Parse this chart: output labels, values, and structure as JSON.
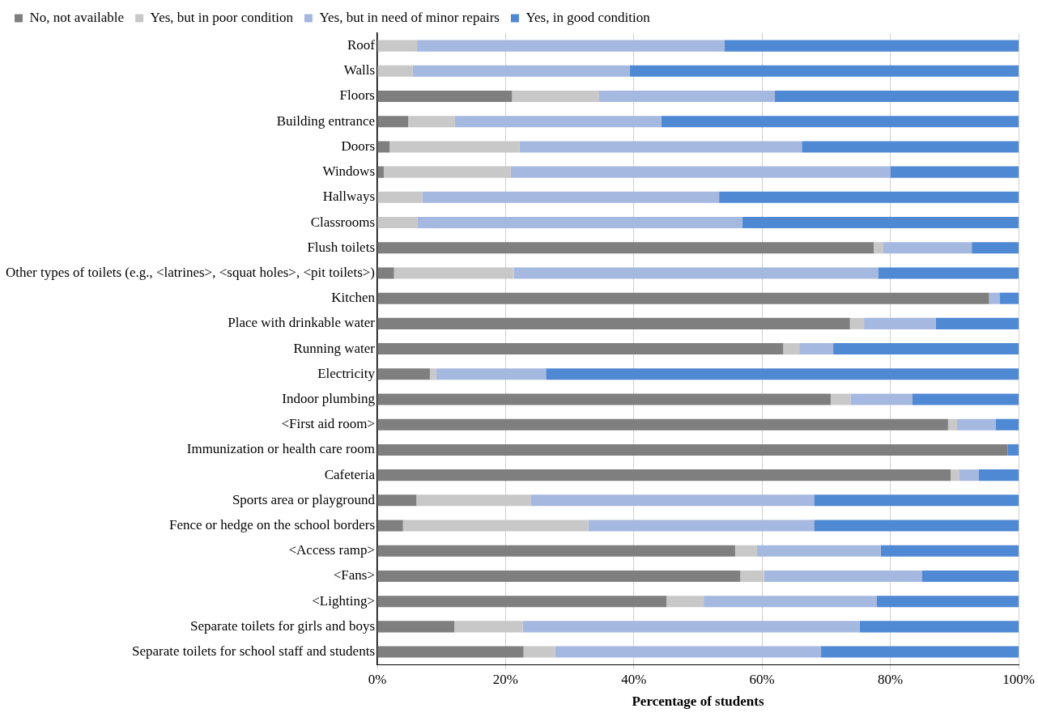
{
  "chart_data": {
    "type": "bar",
    "orientation": "horizontal",
    "stacked": true,
    "xlabel": "Percentage of students",
    "categories": [
      "Roof",
      "Walls",
      "Floors",
      "Building entrance",
      "Doors",
      "Windows",
      "Hallways",
      "Classrooms",
      "Flush toilets",
      "Other types of toilets (e.g., <latrines>, <squat holes>, <pit toilets>)",
      "Kitchen",
      "Place with drinkable water",
      "Running water",
      "Electricity",
      "Indoor plumbing",
      "<First aid room>",
      "Immunization or health care room",
      "Cafeteria",
      "Sports area or playground",
      "Fence or hedge on the school borders",
      "<Access ramp>",
      "<Fans>",
      "<Lighting>",
      "Separate toilets for girls and boys",
      "Separate toilets for school staff and students"
    ],
    "series": [
      {
        "name": "No, not available",
        "color": "#7f7f7f",
        "values": [
          0,
          0,
          21.0,
          4.8,
          1.9,
          1.0,
          0,
          0,
          77.4,
          2.6,
          95.4,
          73.7,
          63.3,
          8.2,
          70.7,
          89.0,
          98.3,
          89.4,
          6.1,
          4.0,
          55.8,
          56.6,
          45.1,
          12.0,
          22.8
        ]
      },
      {
        "name": "Yes, but in poor condition",
        "color": "#c8c8c8",
        "values": [
          6.2,
          5.5,
          13.6,
          7.3,
          20.3,
          19.8,
          7.0,
          6.3,
          1.5,
          18.7,
          0,
          2.2,
          2.5,
          1.0,
          3.1,
          1.4,
          0,
          1.3,
          17.8,
          28.9,
          3.4,
          3.7,
          5.8,
          10.7,
          4.9
        ]
      },
      {
        "name": "Yes, but in need of minor repairs",
        "color": "#a5b8e0",
        "values": [
          47.9,
          33.9,
          27.4,
          32.2,
          44.0,
          59.2,
          46.3,
          50.6,
          13.8,
          56.8,
          1.7,
          11.2,
          5.3,
          17.1,
          9.6,
          6.0,
          0,
          3.1,
          44.2,
          35.2,
          19.3,
          24.6,
          27.0,
          52.5,
          41.5
        ]
      },
      {
        "name": "Yes, in good condition",
        "color": "#4f88d3",
        "values": [
          45.9,
          60.6,
          38.0,
          55.7,
          33.8,
          20.0,
          46.7,
          43.1,
          7.3,
          21.9,
          2.9,
          12.9,
          28.9,
          73.7,
          16.6,
          3.6,
          1.7,
          6.2,
          31.9,
          31.9,
          21.5,
          15.1,
          22.1,
          24.8,
          30.8
        ]
      }
    ],
    "xlim": [
      0,
      100
    ],
    "xticks": [
      {
        "value": 0,
        "label": "0%"
      },
      {
        "value": 20,
        "label": "20%"
      },
      {
        "value": 40,
        "label": "40%"
      },
      {
        "value": 60,
        "label": "60%"
      },
      {
        "value": 80,
        "label": "80%"
      },
      {
        "value": 100,
        "label": "100%"
      }
    ],
    "grid": "x",
    "legend": "top left"
  }
}
